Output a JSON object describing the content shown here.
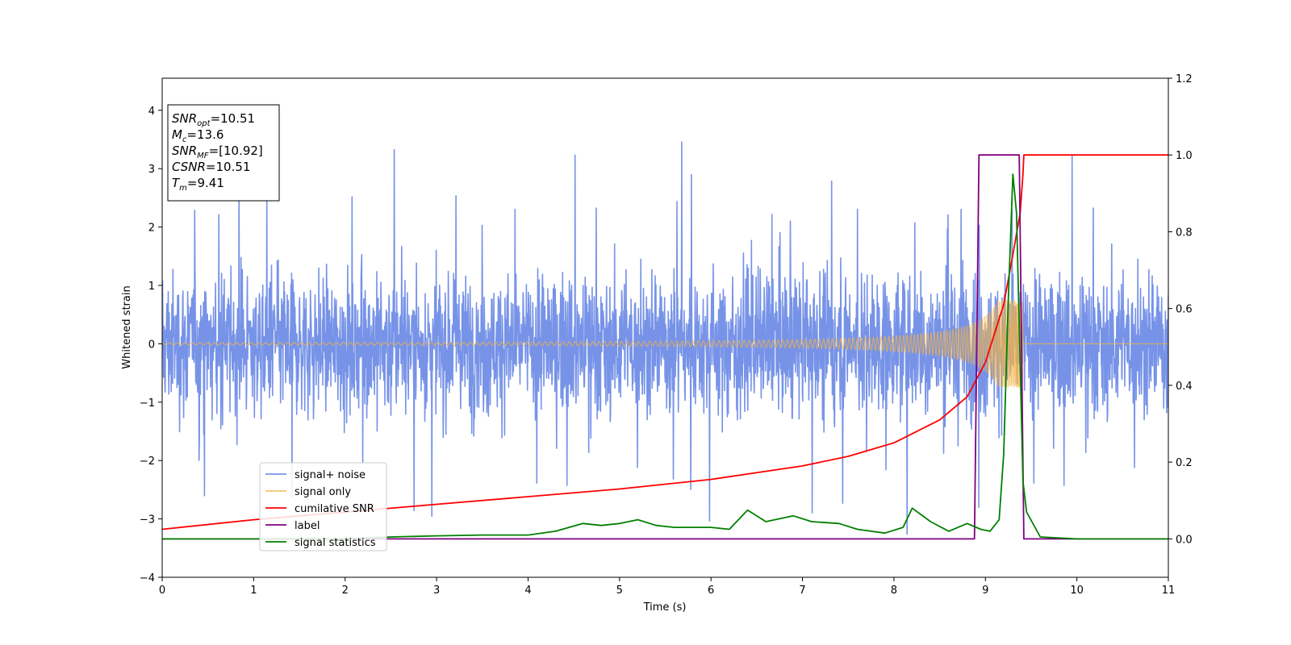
{
  "chart_data": {
    "type": "line",
    "xlabel": "Time (s)",
    "ylabel": "Whitened strain",
    "xlim": [
      0,
      11
    ],
    "ylim": [
      -4,
      4.55
    ],
    "y2lim": [
      -0.1,
      1.2
    ],
    "x_ticks": [
      "0",
      "1",
      "2",
      "3",
      "4",
      "5",
      "6",
      "7",
      "8",
      "9",
      "10",
      "11"
    ],
    "y_ticks": [
      "−4",
      "−3",
      "−2",
      "−1",
      "0",
      "1",
      "2",
      "3",
      "4"
    ],
    "y2_ticks": [
      "0.0",
      "0.2",
      "0.4",
      "0.6",
      "0.8",
      "1.0",
      "1.2"
    ],
    "grid": false,
    "legend_position": "lower-left",
    "colors": {
      "signal_noise": "#6b8ae6",
      "signal_only": "#f5b342",
      "cumulative_snr": "#ff0000",
      "label": "#800080",
      "signal_statistics": "#008000"
    },
    "series": [
      {
        "name": "signal+ noise",
        "axis": "left",
        "description_values": {
          "approx_band": [
            -2.0,
            2.2
          ],
          "peak_max": 4.2,
          "peak_min": -3.6
        },
        "x": [],
        "values": []
      },
      {
        "name": "signal only",
        "axis": "left",
        "chirp": {
          "end_time": 9.41,
          "peak_amplitude": 0.75,
          "amplitude_at_5s": 0.04
        },
        "x": [],
        "values": []
      },
      {
        "name": "cumilative SNR",
        "axis": "right",
        "x": [
          0,
          1,
          2,
          3,
          4,
          5,
          6,
          7,
          7.5,
          8,
          8.5,
          8.8,
          9.0,
          9.2,
          9.3,
          9.38,
          9.41,
          9.42,
          11
        ],
        "values": [
          0.025,
          0.05,
          0.07,
          0.09,
          0.11,
          0.13,
          0.155,
          0.19,
          0.215,
          0.25,
          0.31,
          0.37,
          0.46,
          0.61,
          0.74,
          0.85,
          0.95,
          1.0,
          1.0
        ]
      },
      {
        "name": "label",
        "axis": "right",
        "x": [
          0,
          8.88,
          8.93,
          9.37,
          9.42,
          11
        ],
        "values": [
          0,
          0,
          1,
          1,
          0,
          0
        ]
      },
      {
        "name": "signal statistics",
        "axis": "right",
        "x": [
          0,
          1,
          2,
          2.5,
          3,
          3.5,
          4,
          4.3,
          4.6,
          4.8,
          5.0,
          5.2,
          5.4,
          5.6,
          5.8,
          6.0,
          6.2,
          6.4,
          6.6,
          6.9,
          7.1,
          7.4,
          7.6,
          7.9,
          8.1,
          8.2,
          8.4,
          8.6,
          8.8,
          8.95,
          9.05,
          9.15,
          9.2,
          9.25,
          9.3,
          9.34,
          9.38,
          9.41,
          9.45,
          9.6,
          10,
          11
        ],
        "values": [
          0.0,
          0.0,
          0.0,
          0.005,
          0.008,
          0.01,
          0.01,
          0.02,
          0.04,
          0.035,
          0.04,
          0.05,
          0.035,
          0.03,
          0.03,
          0.03,
          0.025,
          0.075,
          0.045,
          0.06,
          0.045,
          0.04,
          0.025,
          0.015,
          0.03,
          0.08,
          0.045,
          0.02,
          0.04,
          0.025,
          0.02,
          0.05,
          0.22,
          0.62,
          0.95,
          0.85,
          0.45,
          0.15,
          0.07,
          0.005,
          0.0,
          0.0
        ]
      }
    ],
    "annotation": {
      "lines": [
        {
          "main": "SNR",
          "sub": "opt",
          "value": "=10.51"
        },
        {
          "main": "M",
          "sub": "c",
          "value": "=13.6"
        },
        {
          "main": "SNR",
          "sub": "MF",
          "value": "=[10.92]"
        },
        {
          "main": "CSNR",
          "sub": "",
          "value": "=10.51"
        },
        {
          "main": "T",
          "sub": "m",
          "value": "=9.41"
        }
      ]
    }
  }
}
